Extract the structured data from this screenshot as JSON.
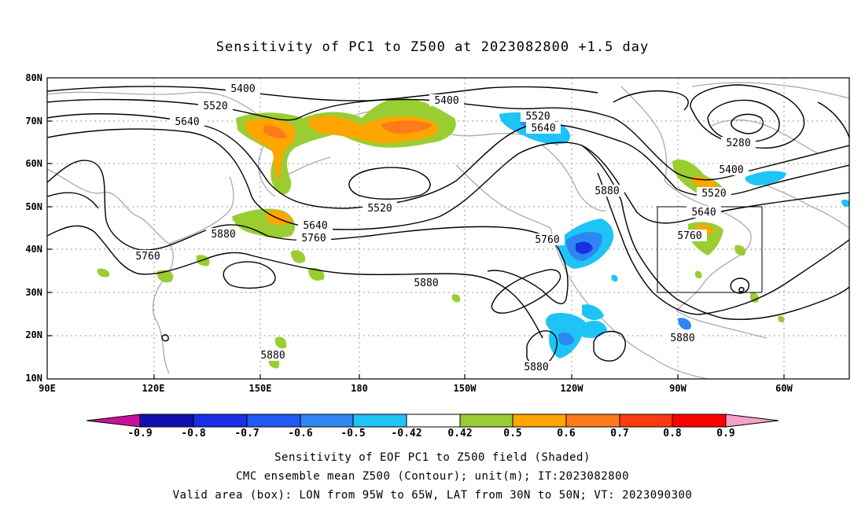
{
  "title": "Sensitivity of PC1 to Z500 at 2023082800 +1.5 day",
  "lat_labels": [
    "80N",
    "70N",
    "60N",
    "50N",
    "40N",
    "30N",
    "20N",
    "10N"
  ],
  "lon_labels": [
    "90E",
    "120E",
    "150E",
    "180",
    "150W",
    "120W",
    "90W",
    "60W"
  ],
  "contour_labels": [
    "5400",
    "5520",
    "5640",
    "5400",
    "5520",
    "5640",
    "5280",
    "5400",
    "5520",
    "5640",
    "5760",
    "5880",
    "5760",
    "5880",
    "5640",
    "5760",
    "5520",
    "5760",
    "5880",
    "5880",
    "5880",
    "5880"
  ],
  "colorbar": {
    "labels": [
      "-0.9",
      "-0.8",
      "-0.7",
      "-0.6",
      "-0.5",
      "-0.42",
      "0.42",
      "0.5",
      "0.6",
      "0.7",
      "0.8",
      "0.9"
    ],
    "colors": [
      "#c8119a",
      "#1010b0",
      "#1a2ee6",
      "#1f5af5",
      "#2d86f2",
      "#1ec4f5",
      "#ffffff",
      "#9acd32",
      "#ffa500",
      "#ff7a1a",
      "#ff3a10",
      "#ff0000",
      "#f7a0c8"
    ]
  },
  "valid_box": {
    "lon": [
      -95,
      -65
    ],
    "lat": [
      30,
      50
    ]
  },
  "footer": [
    "Sensitivity of EOF PC1 to Z500 field (Shaded)",
    "CMC ensemble mean Z500 (Contour); unit(m); IT:2023082800",
    "Valid area (box): LON from 95W to 65W, LAT from 30N to 50N; VT: 2023090300"
  ]
}
